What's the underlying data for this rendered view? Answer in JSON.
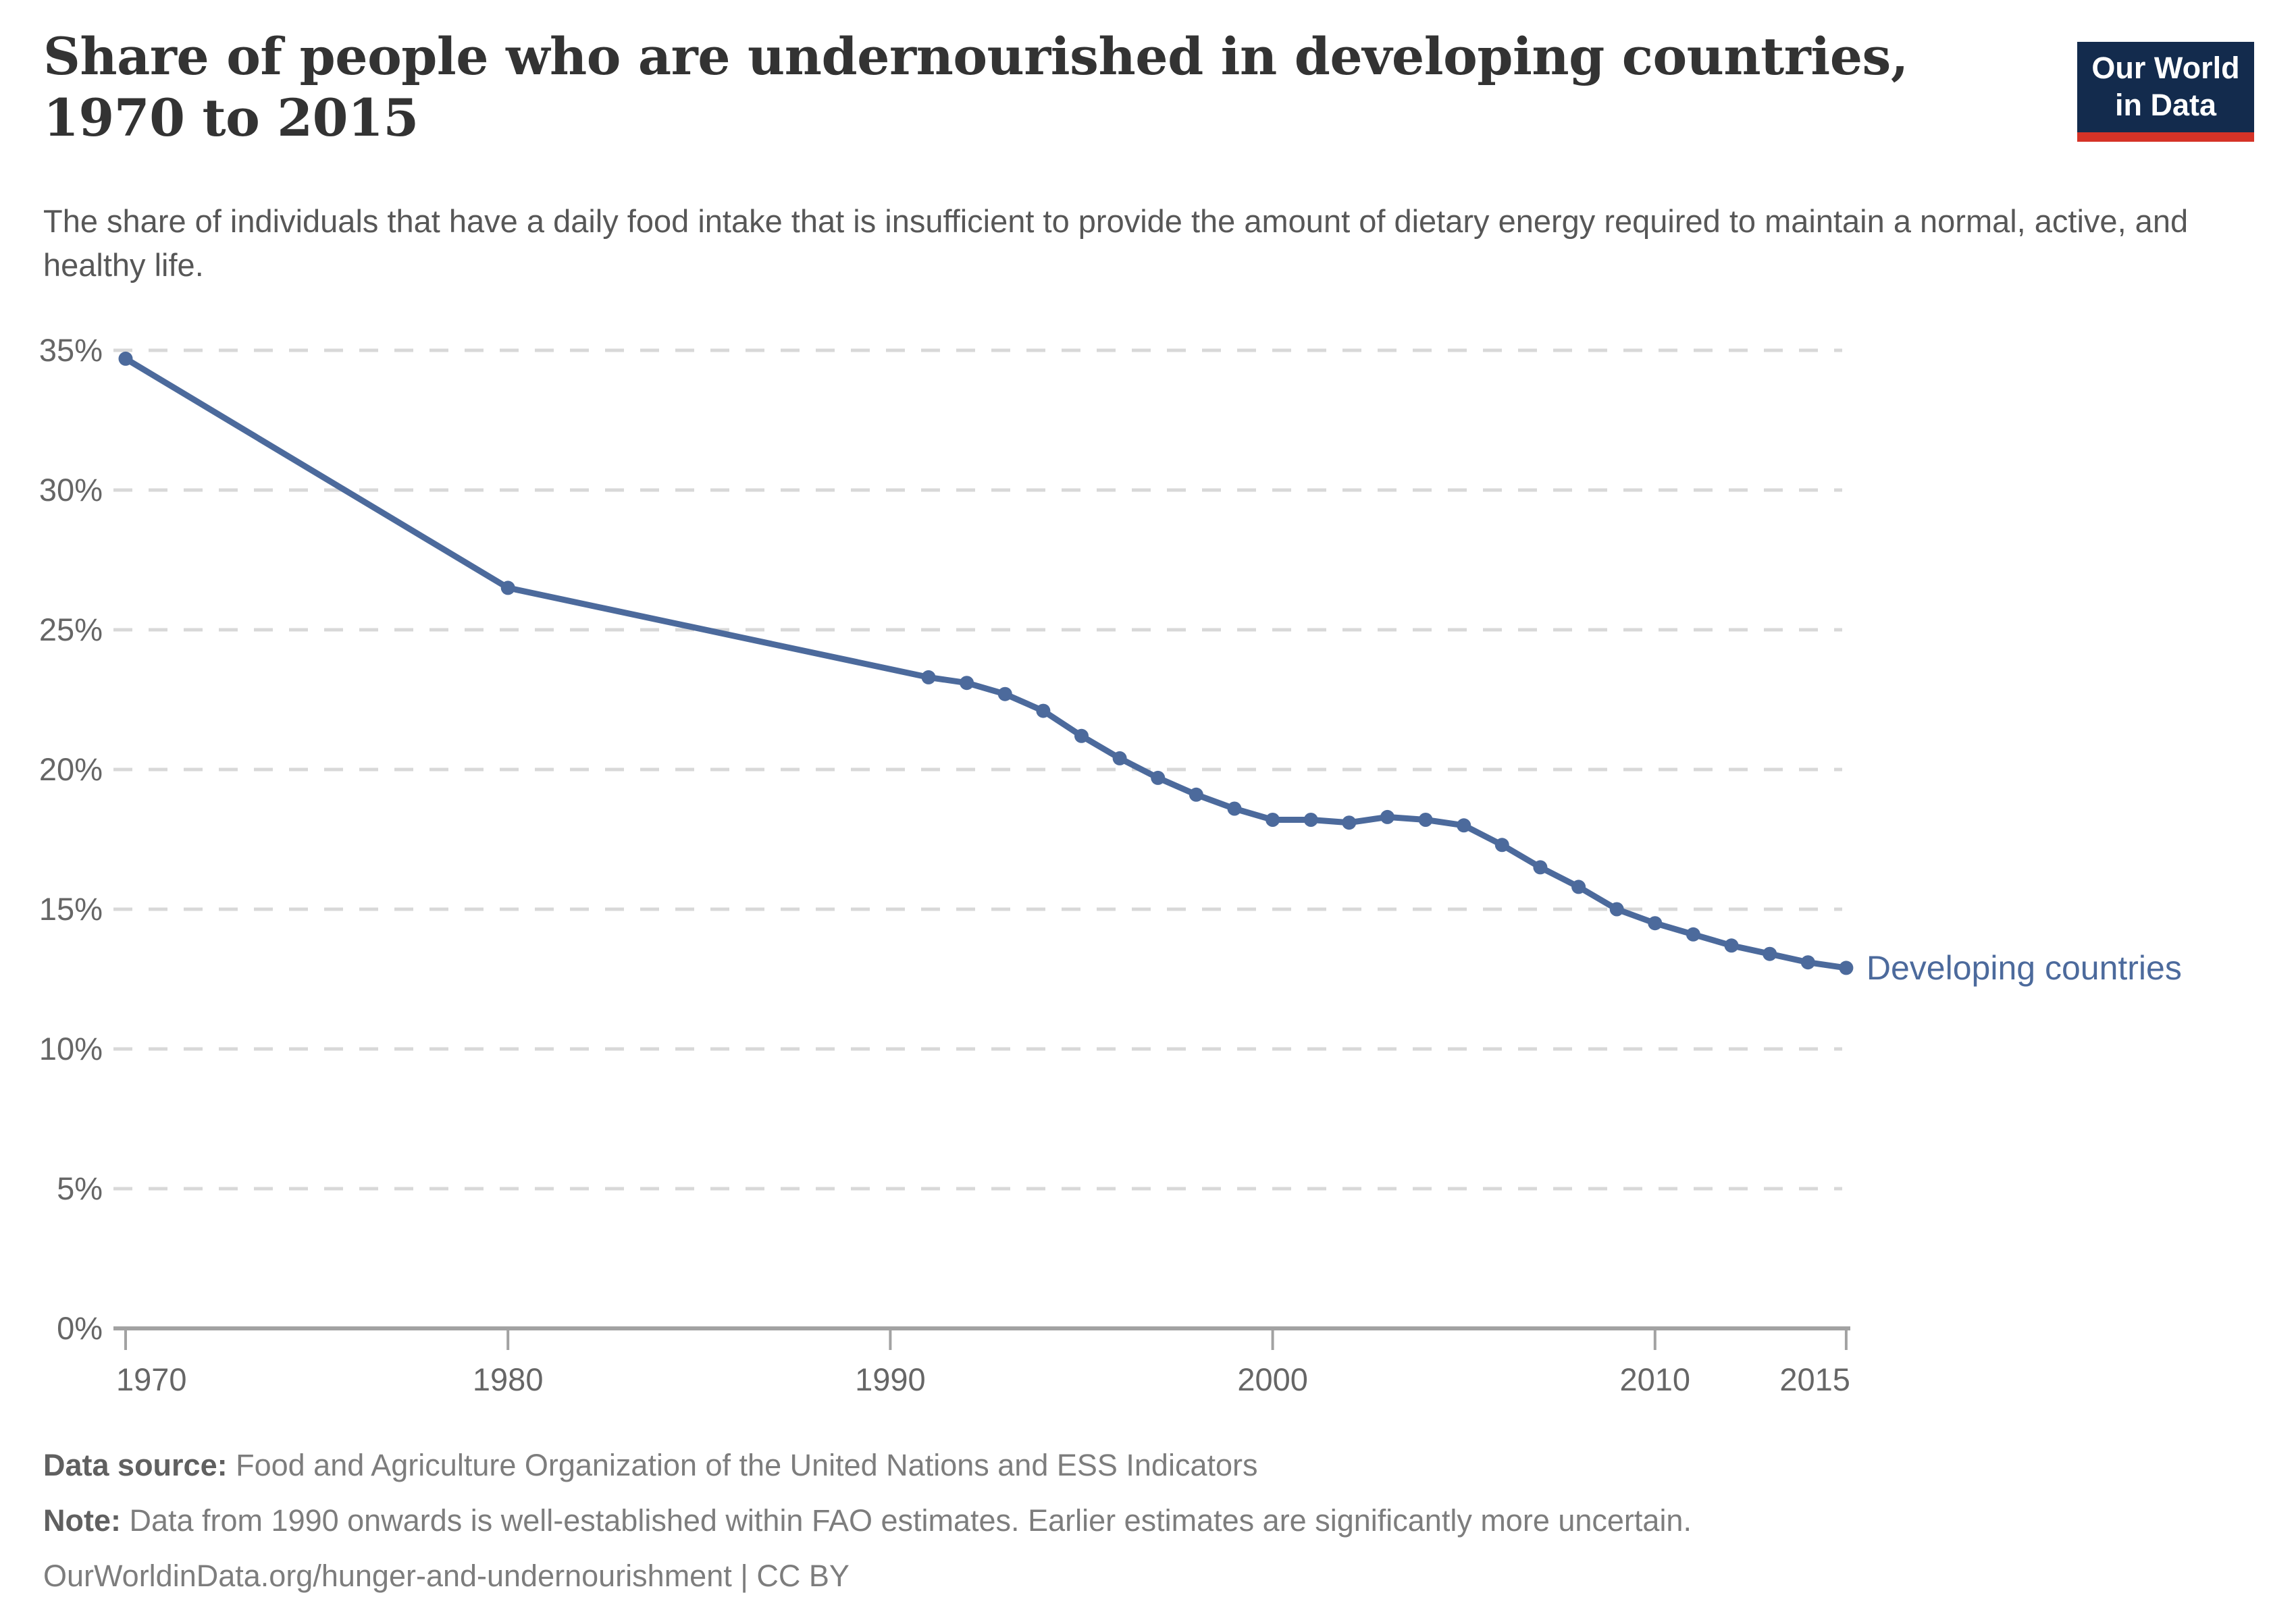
{
  "header": {
    "title": "Share of people who are undernourished in developing countries, 1970 to 2015",
    "subtitle": "The share of individuals that have a daily food intake that is insufficient to provide the amount of dietary energy required to maintain a normal, active, and healthy life.",
    "logo": {
      "line1": "Our World",
      "line2": "in Data"
    }
  },
  "chart_data": {
    "type": "line",
    "title": "Share of people who are undernourished in developing countries, 1970 to 2015",
    "xlabel": "",
    "ylabel": "",
    "x_range": [
      1970,
      2015
    ],
    "y_range": [
      0,
      35
    ],
    "y_ticks": [
      0,
      5,
      10,
      15,
      20,
      25,
      30,
      35
    ],
    "y_tick_suffix": "%",
    "x_ticks": [
      1970,
      1980,
      1990,
      2000,
      2010,
      2015
    ],
    "grid": "horizontal-dashed",
    "legend_position": "end-of-line-label",
    "series": [
      {
        "name": "Developing countries",
        "x": [
          1970,
          1980,
          1991,
          1992,
          1993,
          1994,
          1995,
          1996,
          1997,
          1998,
          1999,
          2000,
          2001,
          2002,
          2003,
          2004,
          2005,
          2006,
          2007,
          2008,
          2009,
          2010,
          2011,
          2012,
          2013,
          2014,
          2015
        ],
        "values": [
          34.7,
          26.5,
          23.3,
          23.1,
          22.7,
          22.1,
          21.2,
          20.4,
          19.7,
          19.1,
          18.6,
          18.2,
          18.2,
          18.1,
          18.3,
          18.2,
          18.0,
          17.3,
          16.5,
          15.8,
          15.0,
          14.5,
          14.1,
          13.7,
          13.4,
          13.1,
          12.9
        ]
      }
    ]
  },
  "footer": {
    "source_label": "Data source:",
    "source_text": " Food and Agriculture Organization of the United Nations and ESS Indicators",
    "note_label": "Note:",
    "note_text": " Data from 1990 onwards is well-established within FAO estimates. Earlier estimates are significantly more uncertain.",
    "citation": "OurWorldinData.org/hunger-and-undernourishment | CC BY"
  },
  "colors": {
    "line": "#4c6a9c",
    "series_label": "#4c6a9c",
    "grid": "#d8d8d8",
    "axis": "#a2a2a2",
    "tick_label": "#666666",
    "title": "#333333",
    "subtitle": "#575757",
    "footer": "#7d7d7d",
    "logo_bg": "#132b4d",
    "logo_accent": "#d53327"
  }
}
